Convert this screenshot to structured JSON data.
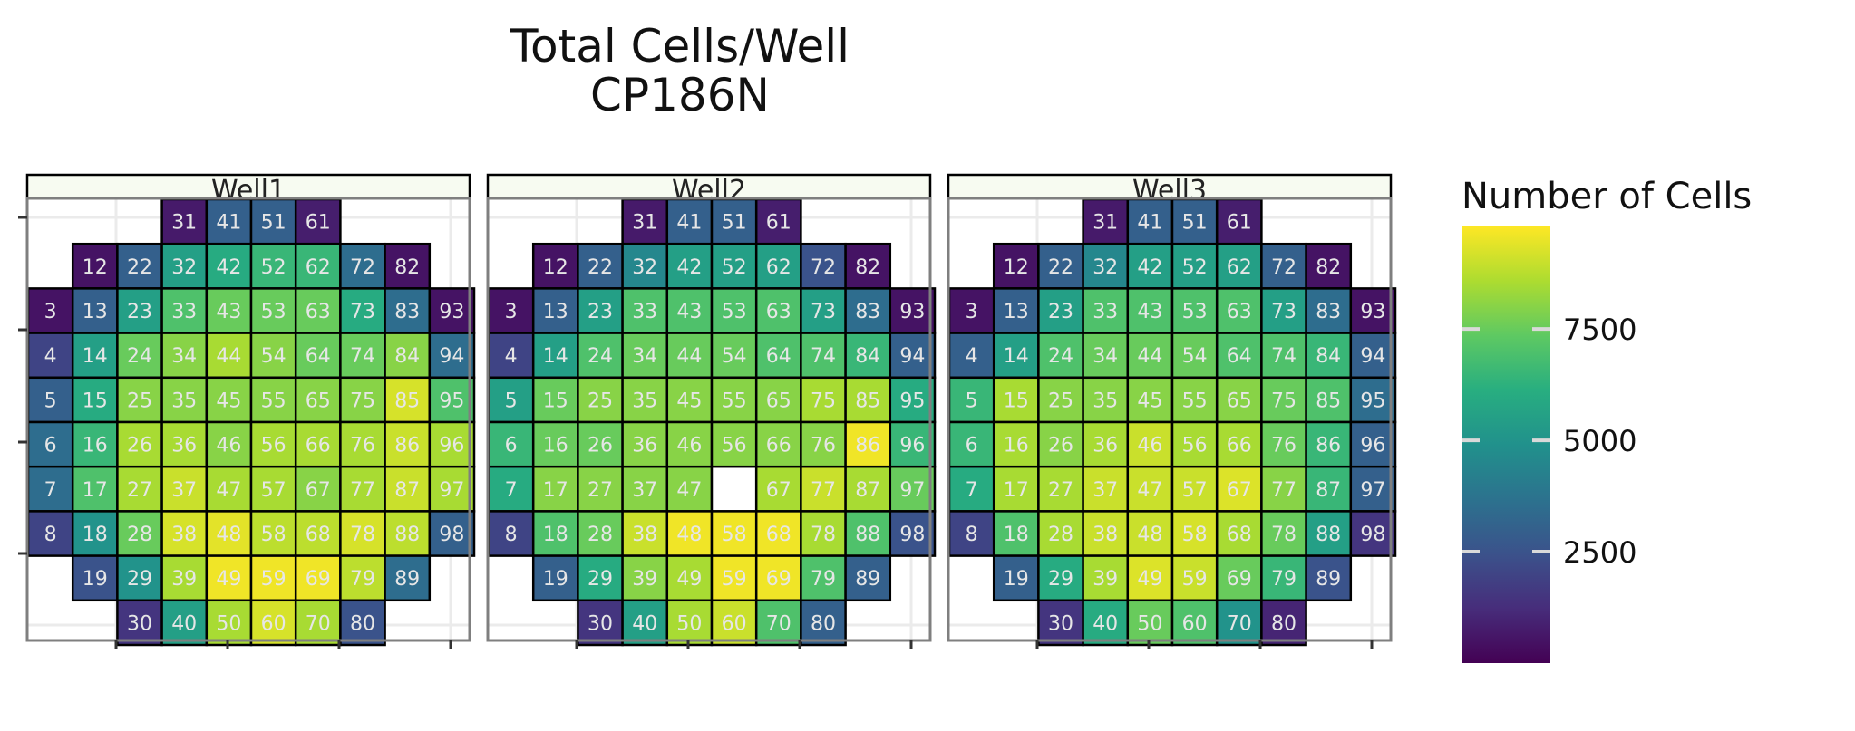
{
  "title_lines": [
    "Total Cells/Well",
    "CP186N"
  ],
  "legend": {
    "title": "Number of Cells",
    "ticks": [
      {
        "value": 2500,
        "label": "2500"
      },
      {
        "value": 5000,
        "label": "5000"
      },
      {
        "value": 7500,
        "label": "7500"
      }
    ]
  },
  "colors": {
    "border": "#000000",
    "panel_frame": "#7f7f7f",
    "grid": "#ebebeb",
    "strip_fill": "#f7fbf1",
    "cell_text": "#e6e6e6",
    "missing": "#ffffff",
    "viridis_low": "#440154",
    "viridis_high": "#fde725"
  },
  "chart_data": {
    "type": "heatmap",
    "colorscale": "viridis",
    "value_range": [
      0,
      9800
    ],
    "facets": [
      "Well1",
      "Well2",
      "Well3"
    ],
    "tile_layout": {
      "rows_top_to_bottom": [
        [
          31,
          41,
          51,
          61
        ],
        [
          12,
          22,
          32,
          42,
          52,
          62,
          72,
          82
        ],
        [
          3,
          13,
          23,
          33,
          43,
          53,
          63,
          73,
          83,
          93
        ],
        [
          4,
          14,
          24,
          34,
          44,
          54,
          64,
          74,
          84,
          94
        ],
        [
          5,
          15,
          25,
          35,
          45,
          55,
          65,
          75,
          85,
          95
        ],
        [
          6,
          16,
          26,
          36,
          46,
          56,
          66,
          76,
          86,
          96
        ],
        [
          7,
          17,
          27,
          37,
          47,
          57,
          67,
          77,
          87,
          97
        ],
        [
          8,
          18,
          28,
          38,
          48,
          58,
          68,
          78,
          88,
          98
        ],
        [
          19,
          29,
          39,
          49,
          59,
          69,
          79,
          89
        ],
        [
          30,
          40,
          50,
          60,
          70,
          80
        ]
      ]
    },
    "values": {
      "Well1": {
        "31": 700,
        "41": 3000,
        "51": 3000,
        "61": 800,
        "12": 500,
        "22": 3000,
        "32": 5500,
        "42": 6000,
        "52": 6500,
        "62": 6500,
        "72": 3500,
        "82": 500,
        "3": 500,
        "13": 3000,
        "23": 5500,
        "33": 7000,
        "43": 7500,
        "53": 7500,
        "63": 7500,
        "73": 6000,
        "83": 3500,
        "93": 500,
        "4": 2000,
        "14": 5500,
        "24": 7500,
        "34": 8000,
        "44": 8500,
        "54": 8000,
        "64": 7500,
        "74": 7500,
        "84": 8000,
        "94": 3500,
        "5": 3000,
        "15": 6000,
        "25": 8000,
        "35": 8000,
        "45": 8000,
        "55": 8000,
        "65": 8000,
        "75": 8000,
        "85": 9200,
        "95": 7000,
        "6": 3500,
        "16": 6500,
        "26": 8500,
        "36": 8500,
        "46": 8000,
        "56": 8500,
        "66": 8500,
        "76": 8500,
        "86": 9000,
        "96": 8500,
        "7": 3500,
        "17": 7000,
        "27": 8500,
        "37": 9000,
        "47": 8500,
        "57": 8500,
        "67": 8000,
        "77": 8500,
        "87": 9000,
        "97": 8500,
        "8": 2000,
        "18": 5000,
        "28": 7500,
        "38": 9200,
        "48": 9400,
        "58": 8800,
        "68": 8800,
        "78": 9200,
        "88": 8800,
        "98": 3000,
        "19": 2500,
        "29": 5000,
        "39": 8500,
        "49": 9600,
        "59": 9600,
        "69": 9600,
        "79": 8800,
        "89": 3500,
        "30": 1500,
        "40": 5500,
        "50": 8500,
        "60": 9200,
        "70": 8500,
        "80": 2500
      },
      "Well2": {
        "31": 700,
        "41": 3000,
        "51": 3000,
        "61": 800,
        "12": 500,
        "22": 3000,
        "32": 4500,
        "42": 5500,
        "52": 5500,
        "62": 5500,
        "72": 2500,
        "82": 500,
        "3": 500,
        "13": 3000,
        "23": 5500,
        "33": 7000,
        "43": 7000,
        "53": 7000,
        "63": 7000,
        "73": 5500,
        "83": 3500,
        "93": 500,
        "4": 2000,
        "14": 5500,
        "24": 7000,
        "34": 7500,
        "44": 7500,
        "54": 7500,
        "64": 7000,
        "74": 7000,
        "84": 6500,
        "94": 3000,
        "5": 5500,
        "15": 7500,
        "25": 8000,
        "35": 8000,
        "45": 8000,
        "55": 8000,
        "65": 8000,
        "75": 8500,
        "85": 8500,
        "95": 6000,
        "6": 6500,
        "16": 7500,
        "26": 7500,
        "36": 8000,
        "46": 8000,
        "56": 8000,
        "66": 8000,
        "76": 8000,
        "86": 9600,
        "96": 6500,
        "7": 6000,
        "17": 8000,
        "27": 8000,
        "37": 8000,
        "47": 8000,
        "57": null,
        "67": 8500,
        "77": 9000,
        "87": 8500,
        "97": 7500,
        "8": 2000,
        "18": 7000,
        "28": 7500,
        "38": 9000,
        "48": 9600,
        "58": 9600,
        "68": 9600,
        "78": 8500,
        "88": 7000,
        "98": 2500,
        "19": 3000,
        "29": 6000,
        "39": 8000,
        "49": 8500,
        "59": 9600,
        "69": 9600,
        "79": 7000,
        "89": 3000,
        "30": 1500,
        "40": 5500,
        "50": 8500,
        "60": 9000,
        "70": 7000,
        "80": 3000
      },
      "Well3": {
        "31": 700,
        "41": 3000,
        "51": 3000,
        "61": 800,
        "12": 500,
        "22": 3000,
        "32": 4500,
        "42": 5500,
        "52": 5500,
        "62": 5500,
        "72": 3000,
        "82": 500,
        "3": 500,
        "13": 3000,
        "23": 5500,
        "33": 7000,
        "43": 7000,
        "53": 7000,
        "63": 7000,
        "73": 5500,
        "83": 3500,
        "93": 500,
        "4": 3000,
        "14": 5500,
        "24": 7000,
        "34": 7500,
        "44": 7500,
        "54": 7500,
        "64": 7000,
        "74": 7000,
        "84": 6500,
        "94": 3000,
        "5": 6500,
        "15": 8500,
        "25": 8000,
        "35": 8000,
        "45": 8000,
        "55": 8000,
        "65": 8000,
        "75": 7500,
        "85": 7000,
        "95": 3500,
        "6": 6500,
        "16": 8500,
        "26": 8000,
        "36": 8500,
        "46": 9000,
        "56": 8500,
        "66": 8500,
        "76": 7500,
        "86": 6500,
        "96": 3000,
        "7": 6000,
        "17": 8500,
        "27": 8500,
        "37": 9000,
        "47": 9000,
        "57": 9000,
        "67": 9300,
        "77": 8000,
        "87": 6500,
        "97": 3000,
        "8": 2000,
        "18": 7000,
        "28": 8500,
        "38": 9000,
        "48": 9000,
        "58": 9200,
        "68": 8500,
        "78": 7500,
        "88": 5500,
        "98": 1500,
        "19": 3000,
        "29": 6000,
        "39": 8500,
        "49": 9300,
        "59": 9000,
        "69": 7500,
        "79": 6500,
        "89": 2500,
        "30": 1500,
        "40": 6000,
        "50": 7500,
        "60": 7000,
        "70": 5000,
        "80": 1000
      }
    }
  }
}
